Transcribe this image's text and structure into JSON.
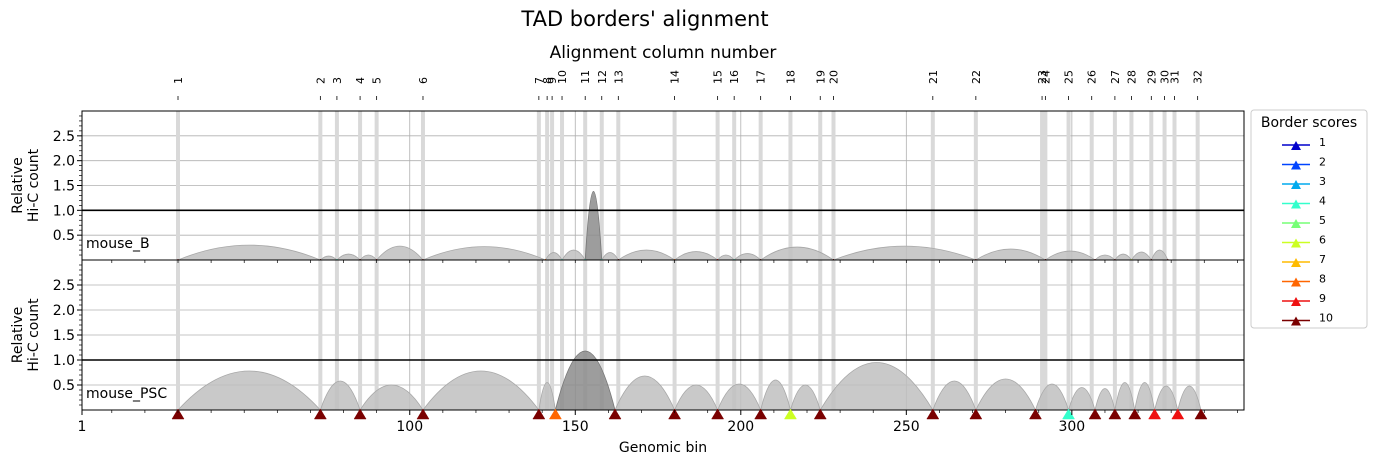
{
  "chart_data": {
    "type": "area",
    "title": "TAD borders' alignment",
    "top_axis_label": "Alignment column number",
    "xlabel": "Genomic bin",
    "ylabel_lines": [
      "Relative",
      "Hi-C count"
    ],
    "xlim": [
      1,
      352
    ],
    "ylim": [
      0,
      3.0
    ],
    "x_ticks": [
      1,
      100,
      150,
      200,
      250,
      300
    ],
    "y_ticks": [
      0.5,
      1.0,
      1.5,
      2.0,
      2.5
    ],
    "reference_line_y": 1.0,
    "grid": true,
    "legend": {
      "title": "Border scores",
      "placement": "right",
      "entries": [
        {
          "label": "1",
          "color": "#0000cc"
        },
        {
          "label": "2",
          "color": "#0044ff"
        },
        {
          "label": "3",
          "color": "#00aaee"
        },
        {
          "label": "4",
          "color": "#33ffcc"
        },
        {
          "label": "5",
          "color": "#77ff77"
        },
        {
          "label": "6",
          "color": "#ccff22"
        },
        {
          "label": "7",
          "color": "#ffbb00"
        },
        {
          "label": "8",
          "color": "#ff6600"
        },
        {
          "label": "9",
          "color": "#ee1111"
        },
        {
          "label": "10",
          "color": "#7a0000"
        }
      ]
    },
    "alignment_columns": [
      {
        "label": "1",
        "x": 30
      },
      {
        "label": "2",
        "x": 73
      },
      {
        "label": "3",
        "x": 78
      },
      {
        "label": "4",
        "x": 85
      },
      {
        "label": "5",
        "x": 90
      },
      {
        "label": "6",
        "x": 104
      },
      {
        "label": "7",
        "x": 139
      },
      {
        "label": "8",
        "x": 141.5
      },
      {
        "label": "9",
        "x": 143
      },
      {
        "label": "10",
        "x": 146
      },
      {
        "label": "11",
        "x": 153
      },
      {
        "label": "12",
        "x": 158
      },
      {
        "label": "13",
        "x": 163
      },
      {
        "label": "14",
        "x": 180
      },
      {
        "label": "15",
        "x": 193
      },
      {
        "label": "16",
        "x": 198
      },
      {
        "label": "17",
        "x": 206
      },
      {
        "label": "18",
        "x": 215
      },
      {
        "label": "19",
        "x": 224
      },
      {
        "label": "20",
        "x": 228
      },
      {
        "label": "21",
        "x": 258
      },
      {
        "label": "22",
        "x": 271
      },
      {
        "label": "23",
        "x": 291
      },
      {
        "label": "24",
        "x": 292
      },
      {
        "label": "25",
        "x": 299
      },
      {
        "label": "26",
        "x": 306
      },
      {
        "label": "27",
        "x": 313
      },
      {
        "label": "28",
        "x": 318
      },
      {
        "label": "29",
        "x": 324
      },
      {
        "label": "30",
        "x": 328
      },
      {
        "label": "31",
        "x": 331
      },
      {
        "label": "32",
        "x": 338
      }
    ],
    "panels": [
      {
        "name": "mouse_B",
        "borders": [
          {
            "x": 30,
            "score": 10
          },
          {
            "x": 73,
            "score": 10
          },
          {
            "x": 78,
            "score": 4
          },
          {
            "x": 85,
            "score": 10
          },
          {
            "x": 90,
            "score": 10
          },
          {
            "x": 104,
            "score": 10
          },
          {
            "x": 141,
            "score": 8
          },
          {
            "x": 146,
            "score": 4
          },
          {
            "x": 153,
            "score": 4
          },
          {
            "x": 158,
            "score": 4
          },
          {
            "x": 163,
            "score": 10
          },
          {
            "x": 180,
            "score": 8
          },
          {
            "x": 193,
            "score": 9
          },
          {
            "x": 198,
            "score": 4
          },
          {
            "x": 206,
            "score": 10
          },
          {
            "x": 228,
            "score": 10
          },
          {
            "x": 271,
            "score": 10
          },
          {
            "x": 292,
            "score": 10
          },
          {
            "x": 307,
            "score": 10
          },
          {
            "x": 313,
            "score": 10
          },
          {
            "x": 318,
            "score": 6
          },
          {
            "x": 324,
            "score": 10
          },
          {
            "x": 329,
            "score": 10
          }
        ],
        "domains": [
          {
            "start": 30,
            "end": 73,
            "height": 0.3
          },
          {
            "start": 73,
            "end": 78,
            "height": 0.08
          },
          {
            "start": 78,
            "end": 85,
            "height": 0.12
          },
          {
            "start": 85,
            "end": 90,
            "height": 0.1
          },
          {
            "start": 90,
            "end": 104,
            "height": 0.28
          },
          {
            "start": 104,
            "end": 141,
            "height": 0.27
          },
          {
            "start": 141,
            "end": 146,
            "height": 0.15
          },
          {
            "start": 146,
            "end": 153,
            "height": 0.2
          },
          {
            "start": 153,
            "end": 158,
            "height": 1.38,
            "dark": true
          },
          {
            "start": 158,
            "end": 163,
            "height": 0.15
          },
          {
            "start": 163,
            "end": 180,
            "height": 0.2
          },
          {
            "start": 180,
            "end": 193,
            "height": 0.17
          },
          {
            "start": 193,
            "end": 198,
            "height": 0.1
          },
          {
            "start": 198,
            "end": 206,
            "height": 0.13
          },
          {
            "start": 206,
            "end": 228,
            "height": 0.26
          },
          {
            "start": 228,
            "end": 271,
            "height": 0.28
          },
          {
            "start": 271,
            "end": 292,
            "height": 0.22
          },
          {
            "start": 292,
            "end": 307,
            "height": 0.18
          },
          {
            "start": 307,
            "end": 313,
            "height": 0.1
          },
          {
            "start": 313,
            "end": 318,
            "height": 0.12
          },
          {
            "start": 318,
            "end": 324,
            "height": 0.16
          },
          {
            "start": 324,
            "end": 329,
            "height": 0.2
          }
        ]
      },
      {
        "name": "mouse_PSC",
        "borders": [
          {
            "x": 30,
            "score": 10
          },
          {
            "x": 73,
            "score": 10
          },
          {
            "x": 85,
            "score": 10
          },
          {
            "x": 104,
            "score": 10
          },
          {
            "x": 139,
            "score": 10
          },
          {
            "x": 144,
            "score": 8
          },
          {
            "x": 162,
            "score": 10
          },
          {
            "x": 180,
            "score": 10
          },
          {
            "x": 193,
            "score": 10
          },
          {
            "x": 206,
            "score": 10
          },
          {
            "x": 215,
            "score": 6
          },
          {
            "x": 224,
            "score": 10
          },
          {
            "x": 258,
            "score": 10
          },
          {
            "x": 271,
            "score": 10
          },
          {
            "x": 289,
            "score": 10
          },
          {
            "x": 299,
            "score": 4
          },
          {
            "x": 307,
            "score": 10
          },
          {
            "x": 313,
            "score": 10
          },
          {
            "x": 319,
            "score": 10
          },
          {
            "x": 325,
            "score": 9
          },
          {
            "x": 332,
            "score": 9
          },
          {
            "x": 339,
            "score": 10
          }
        ],
        "domains": [
          {
            "start": 30,
            "end": 73,
            "height": 0.78
          },
          {
            "start": 73,
            "end": 85,
            "height": 0.58
          },
          {
            "start": 85,
            "end": 104,
            "height": 0.5
          },
          {
            "start": 104,
            "end": 139,
            "height": 0.78
          },
          {
            "start": 139,
            "end": 144,
            "height": 0.55
          },
          {
            "start": 144,
            "end": 162,
            "height": 1.18,
            "dark": true
          },
          {
            "start": 162,
            "end": 180,
            "height": 0.68
          },
          {
            "start": 180,
            "end": 193,
            "height": 0.5
          },
          {
            "start": 193,
            "end": 206,
            "height": 0.52
          },
          {
            "start": 206,
            "end": 215,
            "height": 0.6
          },
          {
            "start": 215,
            "end": 224,
            "height": 0.5
          },
          {
            "start": 224,
            "end": 258,
            "height": 0.95
          },
          {
            "start": 258,
            "end": 271,
            "height": 0.58
          },
          {
            "start": 271,
            "end": 289,
            "height": 0.62
          },
          {
            "start": 289,
            "end": 299,
            "height": 0.52
          },
          {
            "start": 299,
            "end": 307,
            "height": 0.45
          },
          {
            "start": 307,
            "end": 313,
            "height": 0.43
          },
          {
            "start": 313,
            "end": 319,
            "height": 0.55
          },
          {
            "start": 319,
            "end": 325,
            "height": 0.55
          },
          {
            "start": 325,
            "end": 332,
            "height": 0.48
          },
          {
            "start": 332,
            "end": 339,
            "height": 0.48
          }
        ]
      }
    ]
  }
}
